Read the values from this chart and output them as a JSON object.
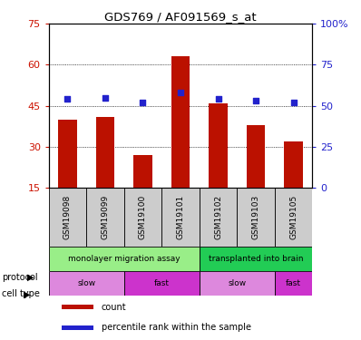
{
  "title": "GDS769 / AF091569_s_at",
  "samples": [
    "GSM19098",
    "GSM19099",
    "GSM19100",
    "GSM19101",
    "GSM19102",
    "GSM19103",
    "GSM19105"
  ],
  "counts": [
    40,
    41,
    27,
    63,
    46,
    38,
    32
  ],
  "percentiles": [
    54,
    55,
    52,
    58,
    54,
    53,
    52
  ],
  "ylim_left": [
    15,
    75
  ],
  "ylim_right": [
    0,
    100
  ],
  "yticks_left": [
    15,
    30,
    45,
    60,
    75
  ],
  "yticks_right": [
    0,
    25,
    50,
    75,
    100
  ],
  "bar_color": "#bb1100",
  "dot_color": "#2222cc",
  "protocol_groups": [
    {
      "label": "monolayer migration assay",
      "start": 0,
      "end": 4,
      "color": "#99ee88"
    },
    {
      "label": "transplanted into brain",
      "start": 4,
      "end": 7,
      "color": "#22cc55"
    }
  ],
  "cell_type_groups": [
    {
      "label": "slow",
      "start": 0,
      "end": 2,
      "color": "#dd88dd"
    },
    {
      "label": "fast",
      "start": 2,
      "end": 4,
      "color": "#cc33cc"
    },
    {
      "label": "slow",
      "start": 4,
      "end": 6,
      "color": "#dd88dd"
    },
    {
      "label": "fast",
      "start": 6,
      "end": 7,
      "color": "#cc33cc"
    }
  ],
  "legend_items": [
    {
      "label": "count",
      "color": "#bb1100"
    },
    {
      "label": "percentile rank within the sample",
      "color": "#2222cc"
    }
  ],
  "left_label_color": "#cc1100",
  "right_label_color": "#2222cc",
  "sample_box_color": "#cccccc"
}
